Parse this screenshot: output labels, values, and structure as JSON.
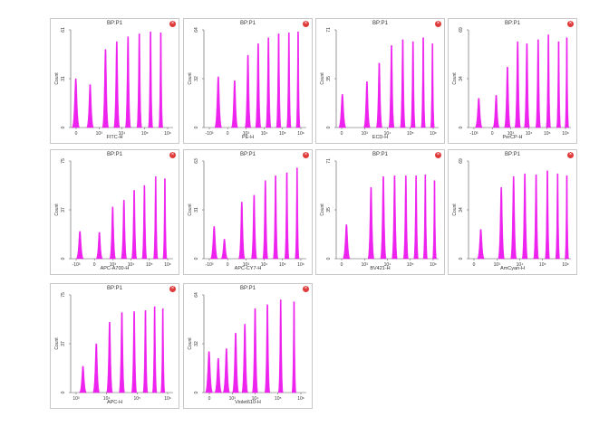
{
  "colors": {
    "histogram": "#ee22ee",
    "close": "#e03b3b",
    "axis": "#555555"
  },
  "chart_data": [
    {
      "type": "histogram",
      "title": "BP:P1",
      "xlabel": "FITC-H",
      "ylabel": "Count",
      "ymax": 61,
      "yticks": [
        "0",
        "31",
        "61"
      ],
      "xticks": [
        "0",
        "10³",
        "10⁴",
        "10⁵",
        "10⁶"
      ],
      "peaks": [
        [
          0.05,
          0.5
        ],
        [
          0.19,
          0.44
        ],
        [
          0.34,
          0.8
        ],
        [
          0.45,
          0.88
        ],
        [
          0.56,
          0.93
        ],
        [
          0.67,
          0.96
        ],
        [
          0.78,
          0.98
        ],
        [
          0.88,
          0.97
        ]
      ]
    },
    {
      "type": "histogram",
      "title": "BP:P1",
      "xlabel": "PE-H",
      "ylabel": "Count",
      "ymax": 64,
      "yticks": [
        "0",
        "32",
        "64"
      ],
      "xticks": [
        "-10³",
        "0",
        "10³",
        "10⁴",
        "10⁵",
        "10⁶"
      ],
      "peaks": [
        [
          0.14,
          0.52
        ],
        [
          0.3,
          0.48
        ],
        [
          0.43,
          0.74
        ],
        [
          0.53,
          0.86
        ],
        [
          0.63,
          0.92
        ],
        [
          0.73,
          0.96
        ],
        [
          0.83,
          0.97
        ],
        [
          0.92,
          0.98
        ]
      ]
    },
    {
      "type": "histogram",
      "title": "BP:P1",
      "xlabel": "ECD-H",
      "ylabel": "Count",
      "ymax": 71,
      "yticks": [
        "0",
        "35",
        "71"
      ],
      "xticks": [
        "0",
        "10³",
        "10⁴",
        "10⁵",
        "10⁶"
      ],
      "peaks": [
        [
          0.06,
          0.34
        ],
        [
          0.3,
          0.47
        ],
        [
          0.42,
          0.66
        ],
        [
          0.54,
          0.84
        ],
        [
          0.65,
          0.9
        ],
        [
          0.75,
          0.88
        ],
        [
          0.85,
          0.92
        ],
        [
          0.94,
          0.86
        ]
      ]
    },
    {
      "type": "histogram",
      "title": "BP:P1",
      "xlabel": "PerCP-H",
      "ylabel": "Count",
      "ymax": 69,
      "yticks": [
        "0",
        "34",
        "69"
      ],
      "xticks": [
        "-10³",
        "0",
        "10³",
        "10⁴",
        "10⁵",
        "10⁶"
      ],
      "peaks": [
        [
          0.1,
          0.3
        ],
        [
          0.27,
          0.33
        ],
        [
          0.38,
          0.62
        ],
        [
          0.48,
          0.88
        ],
        [
          0.57,
          0.86
        ],
        [
          0.68,
          0.9
        ],
        [
          0.78,
          0.95
        ],
        [
          0.88,
          0.88
        ],
        [
          0.96,
          0.92
        ]
      ]
    },
    {
      "type": "histogram",
      "title": "BP:P1",
      "xlabel": "APC-A700-H",
      "ylabel": "Count",
      "ymax": 75,
      "yticks": [
        "0",
        "37",
        "75"
      ],
      "xticks": [
        "-10³",
        "0",
        "10³",
        "10⁴",
        "10⁵",
        "10⁶"
      ],
      "peaks": [
        [
          0.09,
          0.28
        ],
        [
          0.28,
          0.27
        ],
        [
          0.41,
          0.53
        ],
        [
          0.52,
          0.6
        ],
        [
          0.62,
          0.7
        ],
        [
          0.72,
          0.75
        ],
        [
          0.83,
          0.84
        ],
        [
          0.92,
          0.82
        ]
      ]
    },
    {
      "type": "histogram",
      "title": "BP:P1",
      "xlabel": "APC-CY7-H",
      "ylabel": "Count",
      "ymax": 63,
      "yticks": [
        "0",
        "31",
        "63"
      ],
      "xticks": [
        "-10³",
        "0",
        "10³",
        "10⁴",
        "10⁵",
        "10⁶"
      ],
      "peaks": [
        [
          0.1,
          0.33
        ],
        [
          0.2,
          0.2
        ],
        [
          0.37,
          0.58
        ],
        [
          0.49,
          0.65
        ],
        [
          0.6,
          0.8
        ],
        [
          0.7,
          0.85
        ],
        [
          0.81,
          0.88
        ],
        [
          0.91,
          0.93
        ]
      ]
    },
    {
      "type": "histogram",
      "title": "BP:P1",
      "xlabel": "BV421-H",
      "ylabel": "Count",
      "ymax": 71,
      "yticks": [
        "0",
        "35",
        "71"
      ],
      "xticks": [
        "0",
        "10³",
        "10⁴",
        "10⁵",
        "10⁶"
      ],
      "peaks": [
        [
          0.1,
          0.35
        ],
        [
          0.34,
          0.73
        ],
        [
          0.46,
          0.84
        ],
        [
          0.57,
          0.85
        ],
        [
          0.68,
          0.85
        ],
        [
          0.78,
          0.85
        ],
        [
          0.87,
          0.86
        ],
        [
          0.96,
          0.8
        ]
      ]
    },
    {
      "type": "histogram",
      "title": "BP:P1",
      "xlabel": "AmCyan-H",
      "ylabel": "Count",
      "ymax": 69,
      "yticks": [
        "0",
        "34",
        "69"
      ],
      "xticks": [
        "0",
        "10³",
        "10⁴",
        "10⁵",
        "10⁶"
      ],
      "peaks": [
        [
          0.12,
          0.3
        ],
        [
          0.32,
          0.73
        ],
        [
          0.44,
          0.84
        ],
        [
          0.55,
          0.87
        ],
        [
          0.66,
          0.86
        ],
        [
          0.77,
          0.9
        ],
        [
          0.87,
          0.87
        ],
        [
          0.96,
          0.85
        ]
      ]
    },
    {
      "type": "histogram",
      "title": "BP:P1",
      "xlabel": "APC-H",
      "ylabel": "Count",
      "ymax": 75,
      "yticks": [
        "0",
        "37",
        "75"
      ],
      "xticks": [
        "10³",
        "10⁴",
        "10⁵",
        "10⁶"
      ],
      "peaks": [
        [
          0.12,
          0.27
        ],
        [
          0.25,
          0.5
        ],
        [
          0.38,
          0.72
        ],
        [
          0.5,
          0.82
        ],
        [
          0.62,
          0.83
        ],
        [
          0.73,
          0.84
        ],
        [
          0.82,
          0.88
        ],
        [
          0.9,
          0.86
        ]
      ]
    },
    {
      "type": "histogram",
      "title": "BP:P1",
      "xlabel": "Violet610-H",
      "ylabel": "Count",
      "ymax": 64,
      "yticks": [
        "0",
        "32",
        "64"
      ],
      "xticks": [
        "0",
        "10³",
        "10⁴",
        "10⁵",
        "10⁶"
      ],
      "peaks": [
        [
          0.05,
          0.42
        ],
        [
          0.14,
          0.35
        ],
        [
          0.22,
          0.45
        ],
        [
          0.31,
          0.61
        ],
        [
          0.4,
          0.7
        ],
        [
          0.5,
          0.86
        ],
        [
          0.62,
          0.9
        ],
        [
          0.75,
          0.95
        ],
        [
          0.88,
          0.93
        ]
      ]
    }
  ]
}
